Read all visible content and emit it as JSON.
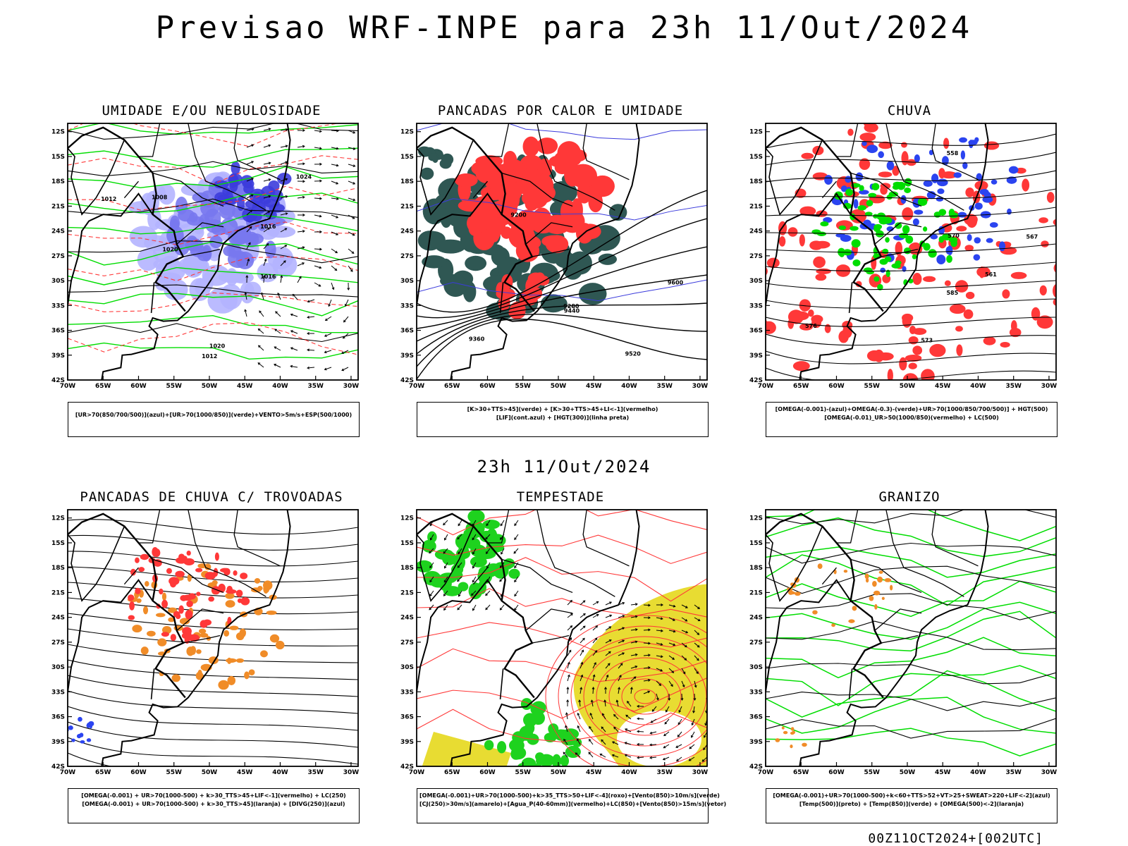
{
  "header": {
    "title": "Previsao WRF-INPE  para 23h 11/Out/2024"
  },
  "middle_label": "23h 11/Out/2024",
  "footer": "00Z11OCT2024+[002UTC]",
  "axes": {
    "lat_labels": [
      "12S",
      "15S",
      "18S",
      "21S",
      "24S",
      "27S",
      "30S",
      "33S",
      "36S",
      "39S",
      "42S"
    ],
    "lon_labels": [
      "70W",
      "65W",
      "60W",
      "55W",
      "50W",
      "45W",
      "40W",
      "35W",
      "30W"
    ]
  },
  "panels": [
    {
      "title": "UMIDADE E/OU NEBULOSIDADE",
      "legend": [
        "[UR>70(850/700/500)](azul)+[UR>70(1000/850)](verde)+VENTO>5m/s+ESP(500/1000)"
      ]
    },
    {
      "title": "PANCADAS POR CALOR E UMIDADE",
      "legend": [
        "[K>30+TTS>45](verde)  +  [K>30+TTS>45+LI<-1](vermelho)",
        "[LIF](cont.azul)  +  [HGT(300)](linha preta)"
      ]
    },
    {
      "title": "CHUVA",
      "legend": [
        "[OMEGA(-0.001)-(azul)+OMEGA(-0.3)-(verde)+UR>70(1000/850/700/500)]  +  HGT(500)",
        "[OMEGA(-0.01)_UR>50(1000/850)(vermelho) + LC(500)"
      ]
    },
    {
      "title": "PANCADAS DE CHUVA C/ TROVOADAS",
      "legend": [
        "[OMEGA(-0.001) + UR>70(1000-500) + k>30_TTS>45+LIF<-1](vermelho) + LC(250)",
        "[OMEGA(-0.001) + UR>70(1000-500) + k>30_TTS>45](laranja) + [DIVG(250)](azul)"
      ]
    },
    {
      "title": "TEMPESTADE",
      "legend": [
        "[OMEGA(-0.001)+UR>70(1000-500)+k>35_TTS>50+LIF<-4](roxo)+[Vento(850)>10m/s](verde)",
        "[CJ(250)>30m/s](amarelo)+[Agua_P(40-60mm)](vermelho)+LC(850)+[Vento(850)>15m/s](vetor)"
      ]
    },
    {
      "title": "GRANIZO",
      "legend": [
        "[OMEGA(-0.001)+UR>70(1000-500)+k<60+TTS>52+VT>25+SWEAT>220+LIF<-2](azul)",
        "[Temp(500)](preto) + [Temp(850)](verde) + [OMEGA(500)<-2](laranja)"
      ]
    }
  ],
  "contour_labels": {
    "p1": [
      "1012",
      "1008",
      "1016",
      "1020",
      "1024",
      "1012",
      "1016",
      "1020"
    ],
    "p2": [
      "9600",
      "9520",
      "9440",
      "9360",
      "9280",
      "9200"
    ],
    "p3": [
      "585",
      "576",
      "573",
      "570",
      "567",
      "561",
      "558"
    ]
  },
  "colors": {
    "blue_light": "#b4b4ff",
    "blue_mid": "#7878ee",
    "blue_dark": "#3c3cdc",
    "green": "#00dd00",
    "red": "#ff3838",
    "dark_teal": "#2f5753",
    "orange": "#f08c28",
    "yellow": "#e8dc32",
    "bright_green": "#1ed21e"
  }
}
